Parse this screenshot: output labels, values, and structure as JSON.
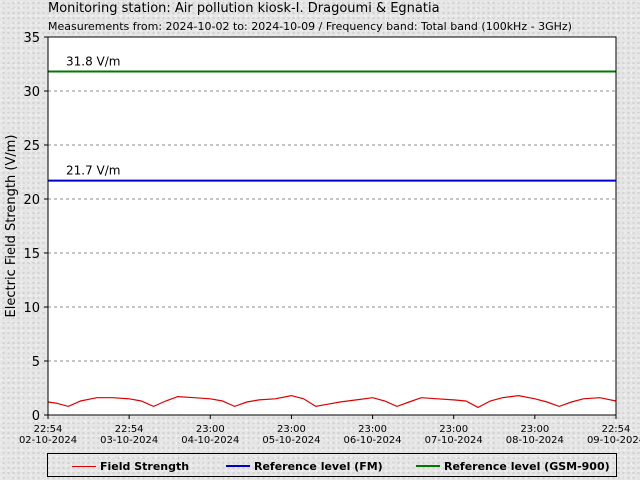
{
  "header": {
    "title": "Monitoring station: Air pollution kiosk-I. Dragoumi & Egnatia",
    "subtitle": "Measurements from: 2024-10-02 to: 2024-10-09 / Frequency band: Total band (100kHz - 3GHz)"
  },
  "chart_data": {
    "type": "line",
    "ylabel": "Electric Field Strength (V/m)",
    "ylim": [
      0,
      35
    ],
    "yticks": [
      0,
      5,
      10,
      15,
      20,
      25,
      30,
      35
    ],
    "grid": true,
    "legend_position": "bottom",
    "x_tick_labels": [
      {
        "time": "22:54",
        "date": "02-10-2024"
      },
      {
        "time": "22:54",
        "date": "03-10-2024"
      },
      {
        "time": "23:00",
        "date": "04-10-2024"
      },
      {
        "time": "23:00",
        "date": "05-10-2024"
      },
      {
        "time": "23:00",
        "date": "06-10-2024"
      },
      {
        "time": "23:00",
        "date": "07-10-2024"
      },
      {
        "time": "23:00",
        "date": "08-10-2024"
      },
      {
        "time": "22:54",
        "date": "09-10-2024"
      }
    ],
    "series": [
      {
        "name": "Field Strength",
        "color": "#dd0000",
        "x": [
          0,
          0.1,
          0.25,
          0.4,
          0.6,
          0.8,
          1.0,
          1.15,
          1.3,
          1.45,
          1.6,
          1.8,
          2.0,
          2.15,
          2.3,
          2.45,
          2.6,
          2.8,
          3.0,
          3.15,
          3.3,
          3.45,
          3.6,
          3.8,
          4.0,
          4.15,
          4.3,
          4.45,
          4.6,
          4.8,
          5.0,
          5.15,
          5.3,
          5.45,
          5.6,
          5.8,
          6.0,
          6.15,
          6.3,
          6.45,
          6.6,
          6.8,
          7.0
        ],
        "values": [
          1.2,
          1.1,
          0.8,
          1.3,
          1.6,
          1.6,
          1.5,
          1.3,
          0.8,
          1.3,
          1.7,
          1.6,
          1.5,
          1.3,
          0.8,
          1.2,
          1.4,
          1.5,
          1.8,
          1.5,
          0.8,
          1.0,
          1.2,
          1.4,
          1.6,
          1.3,
          0.8,
          1.2,
          1.6,
          1.5,
          1.4,
          1.3,
          0.7,
          1.3,
          1.6,
          1.8,
          1.5,
          1.2,
          0.8,
          1.2,
          1.5,
          1.6,
          1.3
        ]
      },
      {
        "name": "Reference level (FM)",
        "color": "#0000cc",
        "constant": 21.7,
        "label": "21.7 V/m"
      },
      {
        "name": "Reference level (GSM-900)",
        "color": "#007700",
        "constant": 31.8,
        "label": "31.8 V/m"
      }
    ]
  }
}
